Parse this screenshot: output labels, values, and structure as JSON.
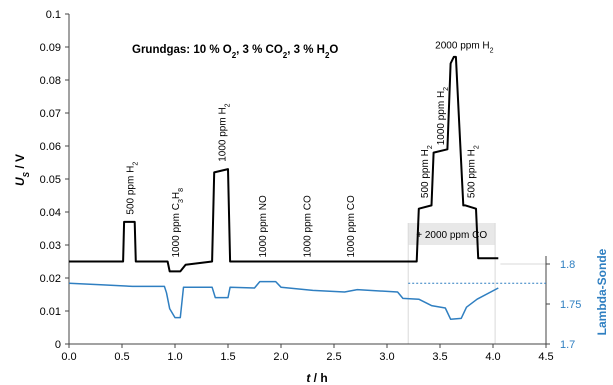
{
  "chart_data": {
    "type": "line",
    "title": "Grundgas: 10 % O2, 3 % CO2, 3 % H2O",
    "title_parts": {
      "a": "Grundgas: 10 % O",
      "b": "2",
      "c": ", 3 % CO",
      "d": "2",
      "e": ", 3 % H",
      "f": "2",
      "g": "O"
    },
    "xlabel": "t / h",
    "ylabel_left": "U_S / V",
    "ylabel_right": "Lambda-Sonde",
    "xlim": [
      0,
      4.5
    ],
    "ylim_left": [
      0,
      0.1
    ],
    "ylim_right": [
      1.7,
      1.8
    ],
    "x_ticks": [
      "0.0",
      "0.5",
      "1.0",
      "1.5",
      "2.0",
      "2.5",
      "3.0",
      "3.5",
      "4.0",
      "4.5"
    ],
    "y_ticks_left": [
      "0",
      "0.01",
      "0.02",
      "0.03",
      "0.04",
      "0.05",
      "0.06",
      "0.07",
      "0.08",
      "0.09",
      "0.1"
    ],
    "y_ticks_right": [
      "1.7",
      "1.75",
      "1.8"
    ],
    "colors": {
      "sensor": "#000000",
      "lambda": "#2f7fc1",
      "axis": "#444444",
      "grid_box": "#d9d9d9"
    },
    "series": [
      {
        "axis": "left",
        "x": [
          0,
          0.51,
          0.52,
          0.62,
          0.63,
          0.93,
          0.95,
          1.05,
          1.1,
          1.35,
          1.37,
          1.5,
          1.52,
          3.28,
          3.3,
          3.42,
          3.44,
          3.57,
          3.6,
          3.63,
          3.65,
          3.72,
          3.74,
          3.84,
          3.86,
          4.05
        ],
        "y": [
          0.025,
          0.025,
          0.037,
          0.037,
          0.025,
          0.025,
          0.022,
          0.022,
          0.024,
          0.025,
          0.052,
          0.053,
          0.025,
          0.025,
          0.041,
          0.042,
          0.058,
          0.059,
          0.085,
          0.087,
          0.087,
          0.042,
          0.042,
          0.041,
          0.026,
          0.026
        ]
      },
      {
        "axis": "right",
        "x": [
          0,
          0.3,
          0.6,
          0.9,
          0.92,
          0.95,
          1.0,
          1.05,
          1.08,
          1.35,
          1.38,
          1.5,
          1.52,
          1.75,
          1.8,
          1.95,
          2.0,
          2.3,
          2.6,
          2.72,
          3.1,
          3.15,
          3.3,
          3.42,
          3.55,
          3.6,
          3.7,
          3.75,
          3.85,
          4.05
        ],
        "y": [
          1.776,
          1.774,
          1.772,
          1.772,
          1.764,
          1.744,
          1.733,
          1.733,
          1.771,
          1.771,
          1.758,
          1.758,
          1.771,
          1.77,
          1.778,
          1.778,
          1.771,
          1.767,
          1.765,
          1.768,
          1.765,
          1.757,
          1.756,
          1.748,
          1.745,
          1.731,
          1.732,
          1.746,
          1.756,
          1.77
        ]
      }
    ],
    "reference_line": {
      "axis": "right",
      "y": 1.776
    },
    "annotations": [
      {
        "x": 0.57,
        "y": 0.038,
        "lines": [
          {
            "t": "500 ppm H"
          },
          {
            "t": "2",
            "sub": true
          }
        ]
      },
      {
        "x": 1.0,
        "y": 0.025,
        "lines": [
          {
            "t": "1000 ppm C"
          },
          {
            "t": "3",
            "sub": true
          },
          {
            "t": "H"
          },
          {
            "t": "8",
            "sub": true
          }
        ]
      },
      {
        "x": 1.44,
        "y": 0.054,
        "lines": [
          {
            "t": "1000 ppm H"
          },
          {
            "t": "2",
            "sub": true
          }
        ]
      },
      {
        "x": 1.82,
        "y": 0.025,
        "lines": [
          {
            "t": "1000 ppm NO"
          }
        ]
      },
      {
        "x": 2.24,
        "y": 0.025,
        "lines": [
          {
            "t": "1000 ppm CO"
          }
        ]
      },
      {
        "x": 2.65,
        "y": 0.025,
        "lines": [
          {
            "t": "1000 ppm CO"
          }
        ]
      },
      {
        "x": 3.35,
        "y": 0.043,
        "lines": [
          {
            "t": "500 ppm H"
          },
          {
            "t": "2",
            "sub": true
          }
        ]
      },
      {
        "x": 3.5,
        "y": 0.059,
        "lines": [
          {
            "t": "1000 ppm H"
          },
          {
            "t": "2",
            "sub": true
          }
        ]
      },
      {
        "x": 3.79,
        "y": 0.043,
        "lines": [
          {
            "t": "500 ppm H"
          },
          {
            "t": "2",
            "sub": true
          }
        ]
      }
    ],
    "annotation_top": {
      "x": 3.73,
      "y": 0.0895,
      "parts": [
        {
          "t": "2000 ppm H"
        },
        {
          "t": "2",
          "sub": true
        }
      ]
    },
    "co_box": {
      "x0": 3.2,
      "x1": 4.02,
      "label": "+ 2000 ppm CO"
    }
  }
}
